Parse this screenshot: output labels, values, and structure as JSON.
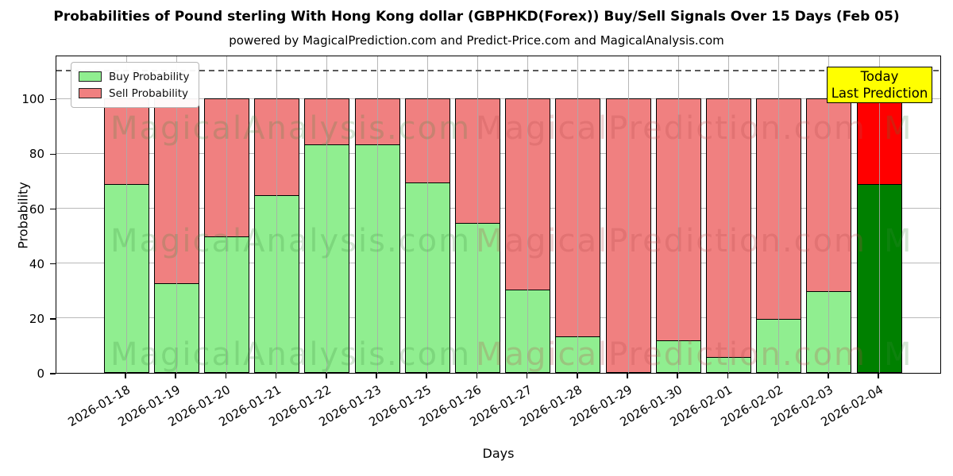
{
  "title": "Probabilities of Pound sterling With Hong Kong dollar (GBPHKD(Forex)) Buy/Sell Signals Over 15 Days (Feb 05)",
  "subtitle": "powered by MagicalPrediction.com and Predict-Price.com and MagicalAnalysis.com",
  "legend": {
    "buy_label": "Buy Probability",
    "sell_label": "Sell Probability"
  },
  "annotation_box": {
    "line1": "Today",
    "line2": "Last Prediction",
    "bg_color": "#ffff00"
  },
  "axes": {
    "ylabel": "Probability",
    "xlabel": "Days",
    "yticks": [
      0,
      20,
      40,
      60,
      80,
      100
    ],
    "ylim": [
      0,
      116
    ],
    "dashed_line_y": 110,
    "grid": true
  },
  "watermarks": {
    "left_text": "MagicalAnalysis.com",
    "right_text": "MagicalPrediction.com",
    "truncated_text": "M"
  },
  "colors": {
    "buy": "#90EE90",
    "sell": "#F08080",
    "today_buy": "#008000",
    "today_sell": "#FF0000",
    "bar_edge": "#000000",
    "annotation_bg": "#ffff00"
  },
  "chart_data": {
    "type": "bar",
    "stacked": true,
    "title": "Probabilities of Pound sterling With Hong Kong dollar (GBPHKD(Forex)) Buy/Sell Signals Over 15 Days (Feb 05)",
    "xlabel": "Days",
    "ylabel": "Probability",
    "ylim": [
      0,
      116
    ],
    "legend_position": "upper-left",
    "categories": [
      "2026-01-18",
      "2026-01-19",
      "2026-01-20",
      "2026-01-21",
      "2026-01-22",
      "2026-01-23",
      "2026-01-25",
      "2026-01-26",
      "2026-01-27",
      "2026-01-28",
      "2026-01-29",
      "2026-01-30",
      "2026-02-01",
      "2026-02-02",
      "2026-02-03",
      "2026-02-04"
    ],
    "series": [
      {
        "name": "Buy Probability",
        "values": [
          69,
          33,
          50,
          65,
          83.5,
          83.5,
          69.5,
          55,
          30.5,
          13.5,
          0,
          12,
          6,
          20,
          30,
          69
        ]
      },
      {
        "name": "Sell Probability",
        "values": [
          31,
          67,
          50,
          35,
          16.5,
          16.5,
          30.5,
          45,
          69.5,
          86.5,
          100,
          88,
          94,
          80,
          70,
          31
        ]
      }
    ],
    "today_index": 15,
    "dashed_reference_line": 110
  }
}
